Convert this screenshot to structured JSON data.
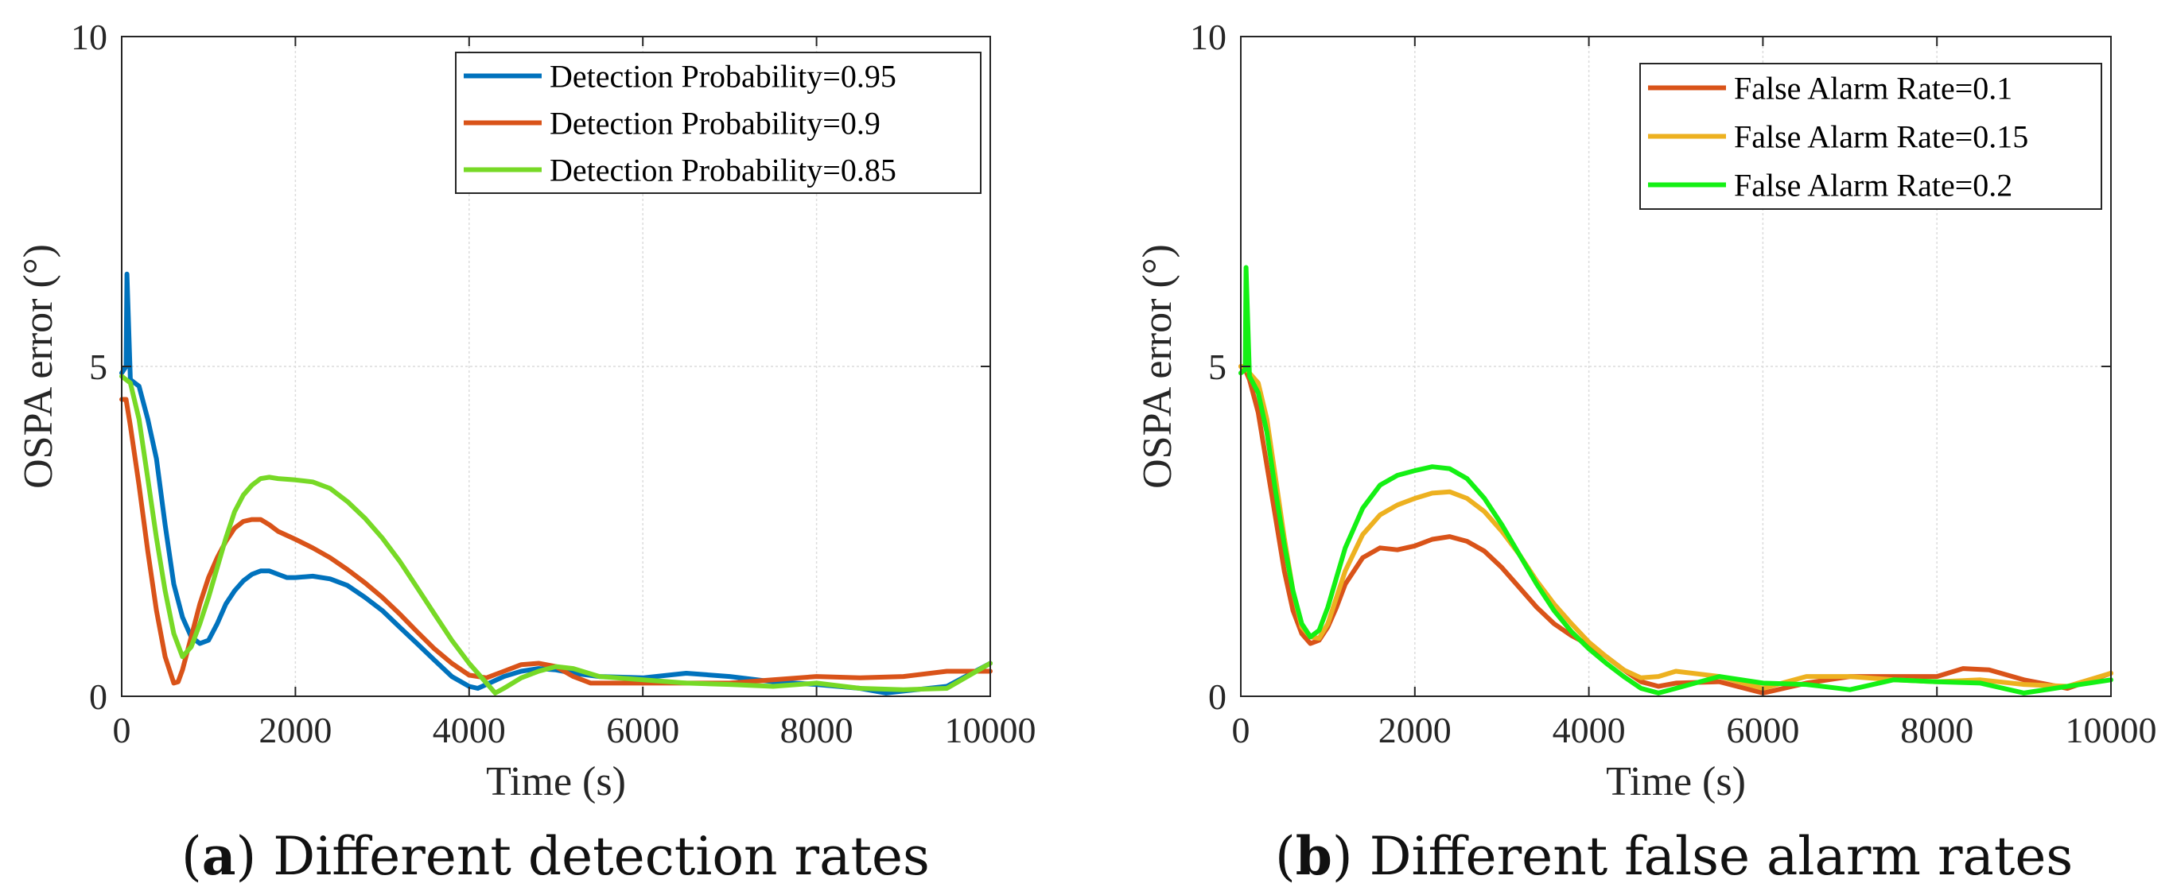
{
  "charts": [
    {
      "caption": {
        "open": "(",
        "letter": "a",
        "close": ")",
        "text": " Different detection rates"
      },
      "chart_data": {
        "type": "line",
        "title": "",
        "xlabel": "Time (s)",
        "ylabel": "OSPA error (°)",
        "xlim": [
          0,
          10000
        ],
        "ylim": [
          0,
          10
        ],
        "xticks": [
          0,
          2000,
          4000,
          6000,
          8000,
          10000
        ],
        "yticks": [
          0,
          5,
          10
        ],
        "xtick_labels": [
          "0",
          "2000",
          "4000",
          "6000",
          "8000",
          "10000"
        ],
        "ytick_labels": [
          "0",
          "5",
          "10"
        ],
        "grid": true,
        "legend_position": "top-right",
        "series": [
          {
            "name": "Detection Probability=0.95",
            "color": "#0072BD",
            "x": [
              0,
              50,
              60,
              100,
              200,
              300,
              400,
              500,
              600,
              700,
              800,
              900,
              1000,
              1100,
              1200,
              1300,
              1400,
              1500,
              1600,
              1700,
              1800,
              1900,
              2000,
              2200,
              2400,
              2600,
              2800,
              3000,
              3200,
              3400,
              3600,
              3800,
              4000,
              4100,
              4200,
              4400,
              4600,
              4800,
              5000,
              5200,
              5500,
              6000,
              6500,
              7000,
              7500,
              8000,
              8500,
              8800,
              9000,
              9500,
              10000
            ],
            "y": [
              4.9,
              5.0,
              6.4,
              4.8,
              4.7,
              4.2,
              3.6,
              2.6,
              1.7,
              1.2,
              0.9,
              0.8,
              0.85,
              1.1,
              1.4,
              1.6,
              1.75,
              1.85,
              1.9,
              1.9,
              1.85,
              1.8,
              1.8,
              1.82,
              1.78,
              1.68,
              1.5,
              1.3,
              1.05,
              0.8,
              0.55,
              0.3,
              0.15,
              0.12,
              0.18,
              0.3,
              0.38,
              0.42,
              0.4,
              0.35,
              0.3,
              0.28,
              0.35,
              0.3,
              0.22,
              0.18,
              0.12,
              0.05,
              0.08,
              0.15,
              0.5
            ]
          },
          {
            "name": "Detection Probability=0.9",
            "color": "#D95319",
            "x": [
              0,
              50,
              100,
              200,
              300,
              400,
              500,
              600,
              650,
              700,
              800,
              900,
              1000,
              1100,
              1200,
              1300,
              1400,
              1500,
              1600,
              1700,
              1800,
              2000,
              2200,
              2400,
              2600,
              2800,
              3000,
              3200,
              3400,
              3600,
              3800,
              4000,
              4200,
              4400,
              4600,
              4800,
              5000,
              5200,
              5400,
              6000,
              6500,
              7000,
              7500,
              8000,
              8500,
              9000,
              9500,
              10000
            ],
            "y": [
              4.5,
              4.5,
              4.1,
              3.2,
              2.2,
              1.3,
              0.6,
              0.2,
              0.22,
              0.4,
              0.9,
              1.4,
              1.8,
              2.1,
              2.35,
              2.55,
              2.65,
              2.68,
              2.68,
              2.6,
              2.5,
              2.38,
              2.25,
              2.1,
              1.92,
              1.72,
              1.5,
              1.25,
              0.98,
              0.72,
              0.5,
              0.32,
              0.28,
              0.38,
              0.48,
              0.5,
              0.45,
              0.3,
              0.2,
              0.2,
              0.2,
              0.2,
              0.25,
              0.3,
              0.28,
              0.3,
              0.38,
              0.38
            ]
          },
          {
            "name": "Detection Probability=0.85",
            "color": "#77D926",
            "x": [
              0,
              50,
              100,
              200,
              300,
              400,
              500,
              600,
              700,
              800,
              900,
              1000,
              1100,
              1200,
              1300,
              1400,
              1500,
              1600,
              1700,
              1800,
              2000,
              2200,
              2400,
              2600,
              2800,
              3000,
              3200,
              3400,
              3600,
              3800,
              4000,
              4200,
              4300,
              4400,
              4600,
              4800,
              5000,
              5200,
              5500,
              6000,
              6500,
              7000,
              7500,
              8000,
              8500,
              9000,
              9500,
              10000
            ],
            "y": [
              4.85,
              4.8,
              4.75,
              4.2,
              3.3,
              2.4,
              1.6,
              0.95,
              0.6,
              0.75,
              1.1,
              1.5,
              1.95,
              2.4,
              2.8,
              3.05,
              3.2,
              3.3,
              3.32,
              3.3,
              3.28,
              3.25,
              3.15,
              2.95,
              2.7,
              2.4,
              2.05,
              1.65,
              1.25,
              0.85,
              0.5,
              0.2,
              0.05,
              0.12,
              0.28,
              0.38,
              0.45,
              0.42,
              0.3,
              0.25,
              0.2,
              0.18,
              0.15,
              0.2,
              0.12,
              0.1,
              0.12,
              0.5
            ]
          }
        ]
      }
    },
    {
      "caption": {
        "open": "(",
        "letter": "b",
        "close": ")",
        "text": " Different false alarm rates"
      },
      "chart_data": {
        "type": "line",
        "title": "",
        "xlabel": "Time (s)",
        "ylabel": "OSPA error (°)",
        "xlim": [
          0,
          10000
        ],
        "ylim": [
          0,
          10
        ],
        "xticks": [
          0,
          2000,
          4000,
          6000,
          8000,
          10000
        ],
        "yticks": [
          0,
          5,
          10
        ],
        "xtick_labels": [
          "0",
          "2000",
          "4000",
          "6000",
          "8000",
          "10000"
        ],
        "ytick_labels": [
          "0",
          "5",
          "10"
        ],
        "grid": true,
        "legend_position": "top-right",
        "series": [
          {
            "name": "False Alarm Rate=0.1",
            "color": "#D95319",
            "x": [
              0,
              50,
              100,
              200,
              300,
              400,
              500,
              600,
              700,
              800,
              900,
              1000,
              1100,
              1200,
              1400,
              1600,
              1800,
              2000,
              2200,
              2400,
              2600,
              2800,
              3000,
              3200,
              3400,
              3600,
              3800,
              4000,
              4200,
              4400,
              4600,
              4800,
              5000,
              5500,
              6000,
              6500,
              7000,
              7500,
              8000,
              8300,
              8600,
              9000,
              9500,
              10000
            ],
            "y": [
              5.0,
              4.95,
              4.8,
              4.3,
              3.5,
              2.7,
              1.9,
              1.3,
              0.95,
              0.8,
              0.85,
              1.05,
              1.35,
              1.7,
              2.1,
              2.25,
              2.22,
              2.28,
              2.38,
              2.42,
              2.35,
              2.2,
              1.95,
              1.65,
              1.35,
              1.1,
              0.92,
              0.78,
              0.6,
              0.4,
              0.22,
              0.15,
              0.2,
              0.22,
              0.05,
              0.2,
              0.3,
              0.3,
              0.3,
              0.42,
              0.4,
              0.25,
              0.12,
              0.35
            ]
          },
          {
            "name": "False Alarm Rate=0.15",
            "color": "#EDB120",
            "x": [
              0,
              50,
              100,
              200,
              300,
              400,
              500,
              600,
              700,
              800,
              900,
              1000,
              1100,
              1200,
              1400,
              1600,
              1800,
              2000,
              2200,
              2400,
              2600,
              2800,
              3000,
              3200,
              3400,
              3600,
              3800,
              4000,
              4200,
              4400,
              4600,
              4800,
              5000,
              5500,
              6000,
              6500,
              7000,
              7500,
              8000,
              8500,
              9000,
              9500,
              10000
            ],
            "y": [
              5.0,
              5.0,
              4.9,
              4.75,
              4.2,
              3.3,
              2.4,
              1.6,
              1.05,
              0.9,
              0.88,
              1.1,
              1.5,
              1.9,
              2.45,
              2.75,
              2.9,
              3.0,
              3.08,
              3.1,
              3.0,
              2.8,
              2.5,
              2.15,
              1.75,
              1.4,
              1.1,
              0.82,
              0.6,
              0.4,
              0.28,
              0.3,
              0.38,
              0.3,
              0.12,
              0.3,
              0.3,
              0.25,
              0.22,
              0.25,
              0.18,
              0.15,
              0.35
            ]
          },
          {
            "name": "False Alarm Rate=0.2",
            "color": "#14F014",
            "x": [
              0,
              50,
              60,
              100,
              200,
              300,
              400,
              500,
              600,
              700,
              800,
              900,
              1000,
              1100,
              1200,
              1400,
              1600,
              1800,
              2000,
              2200,
              2400,
              2600,
              2800,
              3000,
              3200,
              3400,
              3600,
              3800,
              4000,
              4200,
              4400,
              4600,
              4800,
              5000,
              5500,
              6000,
              6500,
              7000,
              7500,
              8000,
              8500,
              9000,
              9500,
              10000
            ],
            "y": [
              4.9,
              4.95,
              6.5,
              4.85,
              4.6,
              4.0,
              3.1,
              2.3,
              1.6,
              1.1,
              0.9,
              1.0,
              1.35,
              1.8,
              2.25,
              2.85,
              3.2,
              3.35,
              3.42,
              3.48,
              3.45,
              3.3,
              3.0,
              2.6,
              2.15,
              1.7,
              1.3,
              0.98,
              0.72,
              0.5,
              0.3,
              0.12,
              0.05,
              0.12,
              0.3,
              0.2,
              0.18,
              0.1,
              0.25,
              0.22,
              0.2,
              0.05,
              0.15,
              0.25
            ]
          }
        ]
      }
    }
  ]
}
